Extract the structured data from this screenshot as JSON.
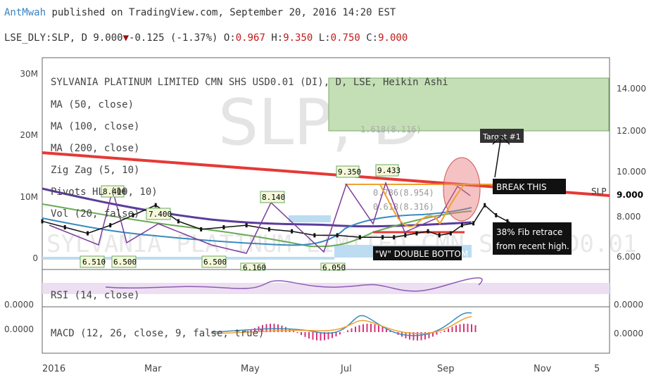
{
  "header": {
    "author": "AntMwah",
    "published_text": " published on TradingView.com, September 20, 2016 14:20 EST",
    "symbol_line": "LSE_DLY:SLP, D 9.000",
    "change": "-0.125 (-1.37%)",
    "open_label": "O:",
    "open": "0.967",
    "high_label": "H:",
    "high": "9.350",
    "low_label": "L:",
    "low": "0.750",
    "close_label": "C:",
    "close": "9.000"
  },
  "watermark": {
    "symbol": "SLP, D",
    "name": "SYLVANIA PLATINUM LIMITED CMN SHS USD0.01 (DI)"
  },
  "indicators": [
    "SYLVANIA PLATINUM LIMITED CMN SHS USD0.01 (DI), D, LSE, Heikin Ashi",
    "MA (50, close)",
    "MA (100, close)",
    "MA (200, close)",
    "Zig Zag (5, 10)",
    "Pivots HL (10, 10)",
    "Vol (20, false)"
  ],
  "rsi_label": "RSI (14, close)",
  "macd_label": "MACD (12, 26, close, 9, false, true)",
  "annotations": {
    "break_this": "BREAK THIS",
    "target": "Target #1",
    "fib_retrace_1": "38% Fib retrace",
    "fib_retrace_2": "from recent high.",
    "double_bottom": "\"W\" DOUBLE BOTTOM",
    "fib_level_1": "1.618(8.116)",
    "fib_level_2": "0.786(8.954)",
    "fib_level_3": "0.618(8.316)",
    "symbol_tag": "SLP",
    "last_price": "9.000"
  },
  "chart_data": [
    {
      "type": "line",
      "title": "SYLVANIA PLATINUM LIMITED CMN SHS USD0.01 (DI), D, LSE, Heikin Ashi",
      "x_ticks": [
        "2016",
        "Mar",
        "May",
        "Jul",
        "Sep",
        "Nov",
        "5"
      ],
      "y_right_ticks": [
        "14.000",
        "12.000",
        "10.000",
        "9.000",
        "8.000",
        "6.000"
      ],
      "y_left_ticks": [
        "30M",
        "20M",
        "10M",
        "0"
      ],
      "pivot_labels": [
        "8.400",
        "7.400",
        "8.140",
        "9.350",
        "9.433",
        "6.510",
        "6.500",
        "6.500",
        "6.160",
        "6.050"
      ],
      "ylim": [
        5.0,
        15.0
      ],
      "series": [
        {
          "name": "SLP",
          "color": "#111111",
          "x": [
            0,
            4,
            8,
            12,
            16,
            20,
            24,
            28,
            32,
            36,
            40,
            44,
            48,
            52,
            56,
            60,
            62,
            64,
            66,
            68,
            70,
            72,
            74,
            76,
            78,
            80,
            82,
            84,
            86,
            88
          ],
          "values": [
            7.3,
            7.0,
            6.7,
            7.1,
            7.6,
            8.1,
            7.3,
            6.9,
            7.0,
            7.1,
            6.9,
            6.8,
            6.6,
            6.6,
            6.5,
            6.5,
            6.5,
            6.6,
            6.7,
            6.8,
            6.6,
            6.7,
            7.1,
            7.2,
            8.1,
            7.6,
            7.3,
            7.0,
            6.9,
            7.0
          ]
        },
        {
          "name": "",
          "color": "#e53935",
          "x": [
            0,
            100
          ],
          "values": [
            10.8,
            9.3
          ]
        }
      ]
    },
    {
      "type": "line",
      "title": "RSI (14, close)",
      "y_ticks": [
        "0.0000"
      ],
      "color": "#8e5ab4"
    },
    {
      "type": "bar",
      "title": "MACD (12, 26, close, 9, false, true)",
      "y_ticks": [
        "0.0000",
        "0.0000"
      ]
    }
  ]
}
